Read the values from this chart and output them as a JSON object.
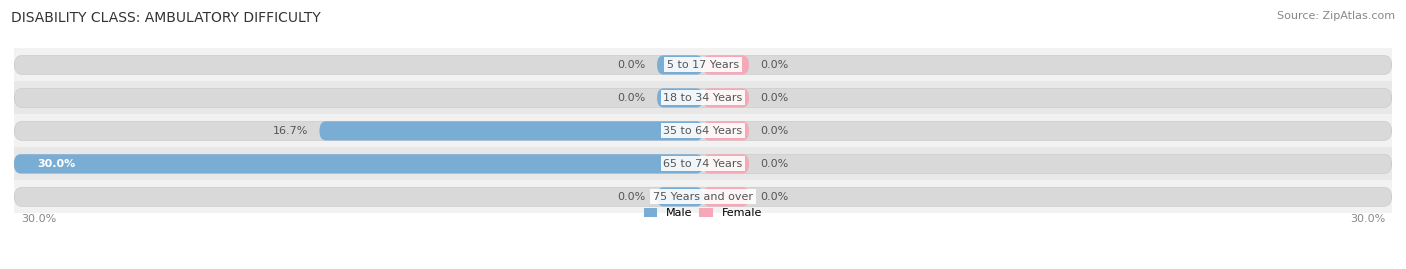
{
  "title": "DISABILITY CLASS: AMBULATORY DIFFICULTY",
  "source": "Source: ZipAtlas.com",
  "categories": [
    "5 to 17 Years",
    "18 to 34 Years",
    "35 to 64 Years",
    "65 to 74 Years",
    "75 Years and over"
  ],
  "male_values": [
    0.0,
    0.0,
    16.7,
    30.0,
    0.0
  ],
  "female_values": [
    0.0,
    0.0,
    0.0,
    0.0,
    0.0
  ],
  "x_min": -30.0,
  "x_max": 30.0,
  "male_color": "#7aadd4",
  "female_color": "#f4a8b8",
  "male_label": "Male",
  "female_label": "Female",
  "bar_bg_color": "#d9d9d9",
  "row_bg_color_odd": "#f2f2f2",
  "row_bg_color_even": "#e8e8e8",
  "label_color": "#555555",
  "title_color": "#333333",
  "axis_label_color": "#888888",
  "background_color": "#ffffff",
  "bar_height": 0.58,
  "min_bar_display": 2.0,
  "title_fontsize": 10,
  "label_fontsize": 8,
  "category_fontsize": 8,
  "axis_tick_fontsize": 8,
  "source_fontsize": 8
}
